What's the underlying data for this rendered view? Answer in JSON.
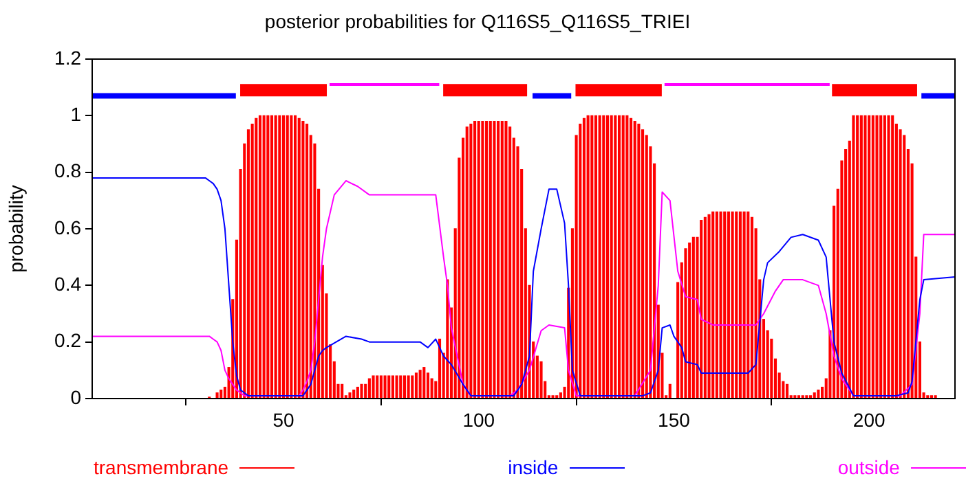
{
  "chart_data": {
    "type": "line",
    "title": "posterior probabilities for Q116S5_Q116S5_TRIEI",
    "ylabel": "probability",
    "xlim": [
      1,
      222
    ],
    "xticks": [
      50,
      100,
      150,
      200
    ],
    "ylim": [
      0,
      1.2
    ],
    "yticks": [
      0,
      0.2,
      0.4,
      0.6,
      0.8,
      1,
      1.2
    ],
    "grid": false,
    "legend": "bottom",
    "x": [
      1,
      2,
      3,
      4,
      5,
      6,
      7,
      8,
      9,
      10,
      11,
      12,
      13,
      14,
      15,
      16,
      17,
      18,
      19,
      20,
      21,
      22,
      23,
      24,
      25,
      26,
      27,
      28,
      29,
      30,
      31,
      32,
      33,
      34,
      35,
      36,
      37,
      38,
      39,
      40,
      41,
      42,
      43,
      44,
      45,
      46,
      47,
      48,
      49,
      50,
      51,
      52,
      53,
      54,
      55,
      56,
      57,
      58,
      59,
      60,
      61,
      62,
      63,
      64,
      65,
      66,
      67,
      68,
      69,
      70,
      71,
      72,
      73,
      74,
      75,
      76,
      77,
      78,
      79,
      80,
      81,
      82,
      83,
      84,
      85,
      86,
      87,
      88,
      89,
      90,
      91,
      92,
      93,
      94,
      95,
      96,
      97,
      98,
      99,
      100,
      101,
      102,
      103,
      104,
      105,
      106,
      107,
      108,
      109,
      110,
      111,
      112,
      113,
      114,
      115,
      116,
      117,
      118,
      119,
      120,
      121,
      122,
      123,
      124,
      125,
      126,
      127,
      128,
      129,
      130,
      131,
      132,
      133,
      134,
      135,
      136,
      137,
      138,
      139,
      140,
      141,
      142,
      143,
      144,
      145,
      146,
      147,
      148,
      149,
      150,
      151,
      152,
      153,
      154,
      155,
      156,
      157,
      158,
      159,
      160,
      161,
      162,
      163,
      164,
      165,
      166,
      167,
      168,
      169,
      170,
      171,
      172,
      173,
      174,
      175,
      176,
      177,
      178,
      179,
      180,
      181,
      182,
      183,
      184,
      185,
      186,
      187,
      188,
      189,
      190,
      191,
      192,
      193,
      194,
      195,
      196,
      197,
      198,
      199,
      200,
      201,
      202,
      203,
      204,
      205,
      206,
      207,
      208,
      209,
      210,
      211,
      212,
      213,
      214,
      215,
      216,
      217,
      218,
      219,
      220,
      221,
      222
    ],
    "series": [
      {
        "name": "transmembrane",
        "type": "bar",
        "color": "#ff0000",
        "values": [
          0,
          0,
          0,
          0,
          0,
          0,
          0,
          0,
          0,
          0,
          0,
          0,
          0,
          0,
          0,
          0,
          0,
          0,
          0,
          0,
          0,
          0,
          0,
          0,
          0,
          0,
          0,
          0,
          0,
          0,
          0.005,
          0,
          0.02,
          0.03,
          0.04,
          0.11,
          0.35,
          0.56,
          0.81,
          0.9,
          0.95,
          0.97,
          0.99,
          1,
          1,
          1,
          1,
          1,
          1,
          1,
          1,
          1,
          1,
          0.99,
          0.98,
          0.97,
          0.93,
          0.9,
          0.74,
          0.47,
          0.37,
          0.19,
          0.13,
          0.05,
          0.05,
          0.01,
          0.02,
          0.03,
          0.04,
          0.05,
          0.05,
          0.07,
          0.08,
          0.08,
          0.08,
          0.08,
          0.08,
          0.08,
          0.08,
          0.08,
          0.08,
          0.08,
          0.08,
          0.09,
          0.1,
          0.11,
          0.09,
          0.07,
          0.06,
          0.21,
          0.16,
          0.42,
          0.32,
          0.6,
          0.85,
          0.92,
          0.96,
          0.97,
          0.98,
          0.98,
          0.98,
          0.98,
          0.98,
          0.98,
          0.98,
          0.98,
          0.98,
          0.96,
          0.92,
          0.89,
          0.81,
          0.6,
          0.4,
          0.2,
          0.15,
          0.13,
          0.06,
          0.01,
          0.01,
          0.01,
          0.02,
          0.04,
          0.39,
          0.6,
          0.93,
          0.97,
          0.99,
          1,
          1,
          1,
          1,
          1,
          1,
          1,
          1,
          1,
          1,
          1,
          0.99,
          0.98,
          0.97,
          0.95,
          0.93,
          0.89,
          0.83,
          0.33,
          0.16,
          0.01,
          0.05,
          0,
          0.41,
          0.48,
          0.53,
          0.55,
          0.57,
          0.57,
          0.63,
          0.64,
          0.65,
          0.66,
          0.66,
          0.66,
          0.66,
          0.66,
          0.66,
          0.66,
          0.66,
          0.66,
          0.66,
          0.64,
          0.6,
          0.42,
          0.28,
          0.24,
          0.21,
          0.14,
          0.09,
          0.06,
          0.05,
          0.01,
          0.01,
          0.01,
          0.01,
          0.01,
          0.01,
          0.02,
          0.03,
          0.04,
          0.07,
          0.24,
          0.68,
          0.74,
          0.84,
          0.88,
          0.91,
          1,
          1,
          1,
          1,
          1,
          1,
          1,
          1,
          1,
          1,
          1,
          0.97,
          0.95,
          0.93,
          0.88,
          0.83,
          0.5,
          0.2,
          0.02,
          0.01,
          0.01,
          0.01,
          0,
          0,
          0,
          0,
          0
        ]
      },
      {
        "name": "inside",
        "color": "#0000ff",
        "x": [
          1,
          30,
          31,
          32,
          33,
          34,
          35,
          36,
          37,
          38,
          39,
          40,
          41,
          55,
          56,
          57,
          58,
          59,
          60,
          61,
          66,
          70,
          72,
          85,
          87,
          89,
          91,
          93,
          96,
          98,
          109,
          111,
          113,
          114,
          116,
          118,
          120,
          122,
          123,
          124,
          126,
          142,
          144,
          146,
          147,
          149,
          150,
          152,
          153,
          156,
          157,
          169,
          171,
          173,
          174,
          177,
          180,
          183,
          187,
          189,
          191,
          193,
          196,
          207,
          210,
          211,
          213,
          214,
          222
        ],
        "values": [
          0.78,
          0.78,
          0.77,
          0.76,
          0.74,
          0.7,
          0.6,
          0.4,
          0.2,
          0.08,
          0.03,
          0.02,
          0.01,
          0.01,
          0.03,
          0.05,
          0.1,
          0.15,
          0.17,
          0.18,
          0.22,
          0.21,
          0.2,
          0.2,
          0.18,
          0.21,
          0.15,
          0.12,
          0.05,
          0.01,
          0.01,
          0.05,
          0.15,
          0.45,
          0.6,
          0.74,
          0.74,
          0.62,
          0.4,
          0.1,
          0.01,
          0.01,
          0.02,
          0.1,
          0.25,
          0.26,
          0.22,
          0.18,
          0.13,
          0.12,
          0.09,
          0.09,
          0.12,
          0.42,
          0.48,
          0.52,
          0.57,
          0.58,
          0.56,
          0.5,
          0.2,
          0.09,
          0.01,
          0.01,
          0.02,
          0.06,
          0.35,
          0.42,
          0.43
        ]
      },
      {
        "name": "outside",
        "color": "#ff00ff",
        "x": [
          1,
          30,
          31,
          32,
          33,
          34,
          35,
          36,
          37,
          38,
          39,
          40,
          41,
          53,
          54,
          55,
          56,
          57,
          58,
          59,
          60,
          61,
          63,
          66,
          69,
          72,
          89,
          91,
          92,
          93,
          96,
          98,
          108,
          110,
          113,
          116,
          118,
          122,
          123,
          125,
          137,
          140,
          144,
          146,
          147,
          149,
          151,
          153,
          156,
          157,
          160,
          171,
          173,
          176,
          178,
          183,
          187,
          189,
          191,
          193,
          196,
          208,
          211,
          213,
          214,
          222
        ],
        "values": [
          0.22,
          0.22,
          0.22,
          0.21,
          0.2,
          0.17,
          0.1,
          0.07,
          0.05,
          0.03,
          0.02,
          0.01,
          0.01,
          0.01,
          0.01,
          0.03,
          0.06,
          0.1,
          0.2,
          0.35,
          0.5,
          0.6,
          0.72,
          0.77,
          0.75,
          0.72,
          0.72,
          0.5,
          0.4,
          0.25,
          0.05,
          0.01,
          0.01,
          0.03,
          0.1,
          0.24,
          0.26,
          0.25,
          0.1,
          0.01,
          0.01,
          0.01,
          0.1,
          0.4,
          0.73,
          0.7,
          0.45,
          0.36,
          0.35,
          0.28,
          0.26,
          0.26,
          0.3,
          0.38,
          0.42,
          0.42,
          0.4,
          0.3,
          0.15,
          0.07,
          0.01,
          0.01,
          0.05,
          0.3,
          0.58,
          0.58
        ]
      },
      {
        "color": "#0000ff",
        "x": [
          1,
          37.8,
          37.9,
          113.8,
          123.7,
          123.8,
          213.4,
          222
        ],
        "values": [
          1.07,
          1.07,
          null,
          1.07,
          1.07,
          null,
          1.07,
          1.07
        ]
      },
      {
        "color": "#ff0000",
        "x": [
          38.9,
          61.1,
          61.2,
          90.9,
          112.4,
          112.5,
          124.8,
          146.9,
          147,
          190.5,
          212.3
        ],
        "values": [
          1.09,
          1.09,
          null,
          1.09,
          1.09,
          null,
          1.09,
          1.09,
          null,
          1.09,
          1.09
        ]
      },
      {
        "color": "#ff00ff",
        "x": [
          61.8,
          89.9,
          90,
          147.6,
          189.9
        ],
        "values": [
          1.11,
          1.11,
          null,
          1.11,
          1.11
        ]
      }
    ]
  }
}
